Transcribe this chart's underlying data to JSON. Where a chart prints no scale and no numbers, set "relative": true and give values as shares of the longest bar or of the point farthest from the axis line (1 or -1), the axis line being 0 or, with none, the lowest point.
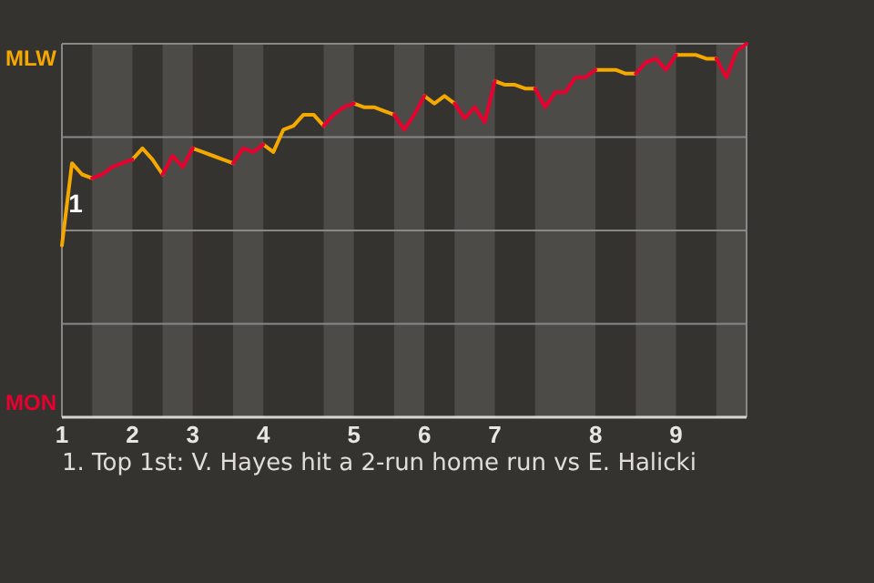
{
  "chart_data": {
    "type": "line",
    "relative": true,
    "categories": [
      "1",
      null,
      null,
      null,
      null,
      null,
      null,
      "2",
      null,
      null,
      null,
      null,
      null,
      "3",
      null,
      null,
      null,
      null,
      null,
      null,
      "4",
      null,
      null,
      null,
      null,
      null,
      null,
      null,
      null,
      "5",
      null,
      null,
      null,
      null,
      null,
      null,
      "6",
      null,
      null,
      null,
      null,
      null,
      null,
      "7",
      null,
      null,
      null,
      null,
      null,
      null,
      null,
      null,
      null,
      "8",
      null,
      null,
      null,
      null,
      null,
      null,
      null,
      "9",
      null,
      null,
      null,
      null,
      null,
      null,
      null
    ],
    "grid": "y",
    "marker": "none",
    "line_style": "solid",
    "series": [
      {
        "color": "#f5a800",
        "values": [
          0.46,
          0.68,
          0.65,
          0.64,
          null,
          null,
          null,
          0.69,
          0.72,
          0.69,
          0.65,
          null,
          null,
          0.72,
          0.71,
          0.7,
          0.69,
          0.68,
          null,
          null,
          0.73,
          0.71,
          0.77,
          0.78,
          0.81,
          0.81,
          0.78,
          null,
          null,
          0.84,
          0.83,
          0.83,
          0.82,
          0.81,
          null,
          null,
          0.86,
          0.84,
          0.86,
          0.84,
          null,
          null,
          null,
          0.9,
          0.89,
          0.89,
          0.88,
          0.88,
          null,
          null,
          null,
          null,
          null,
          0.93,
          0.93,
          0.93,
          0.92,
          0.92,
          null,
          null,
          null,
          0.97,
          0.97,
          0.97,
          0.96,
          0.96,
          null,
          null,
          null
        ]
      },
      {
        "color": "#e8002f",
        "values": [
          null,
          null,
          null,
          0.64,
          0.65,
          0.67,
          0.68,
          0.69,
          null,
          null,
          0.65,
          0.7,
          0.67,
          0.72,
          null,
          null,
          null,
          0.68,
          0.72,
          0.71,
          0.73,
          null,
          null,
          null,
          null,
          null,
          0.78,
          0.81,
          0.83,
          0.84,
          null,
          null,
          null,
          0.81,
          0.77,
          0.81,
          0.86,
          null,
          null,
          0.84,
          0.8,
          0.83,
          0.79,
          0.9,
          null,
          null,
          null,
          0.88,
          0.83,
          0.87,
          0.87,
          0.91,
          0.91,
          0.93,
          null,
          null,
          null,
          0.92,
          0.95,
          0.96,
          0.93,
          0.97,
          null,
          null,
          null,
          0.96,
          0.91,
          0.98,
          1
        ]
      }
    ],
    "annotations": [
      "MLW",
      "MON",
      "1",
      "1. Top 1st: V. Hayes hit a 2-run home run vs E. Halicki"
    ]
  }
}
